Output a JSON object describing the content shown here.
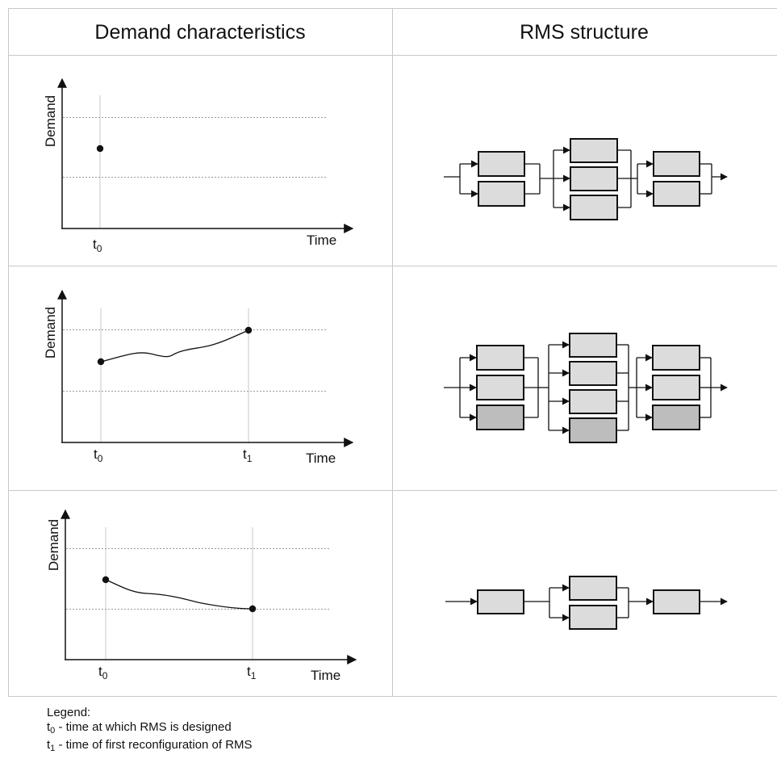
{
  "header": {
    "left": "Demand characteristics",
    "right": "RMS structure"
  },
  "axes": {
    "y_label": "Demand",
    "x_label": "Time",
    "t0_base": "t",
    "t0_sub": "0",
    "t1_base": "t",
    "t1_sub": "1"
  },
  "legend": {
    "title": "Legend:",
    "items": [
      {
        "symbol_base": "t",
        "symbol_sub": "0",
        "text": " - time at which RMS is designed"
      },
      {
        "symbol_base": "t",
        "symbol_sub": "1",
        "text": " - time of first reconfiguration of RMS"
      }
    ]
  },
  "colors": {
    "grid": "#c8c8c8",
    "dotted": "#9a9a9a",
    "axis": "#111111",
    "box_light": "#dcdcdc",
    "box_dark": "#bdbdbd"
  }
}
